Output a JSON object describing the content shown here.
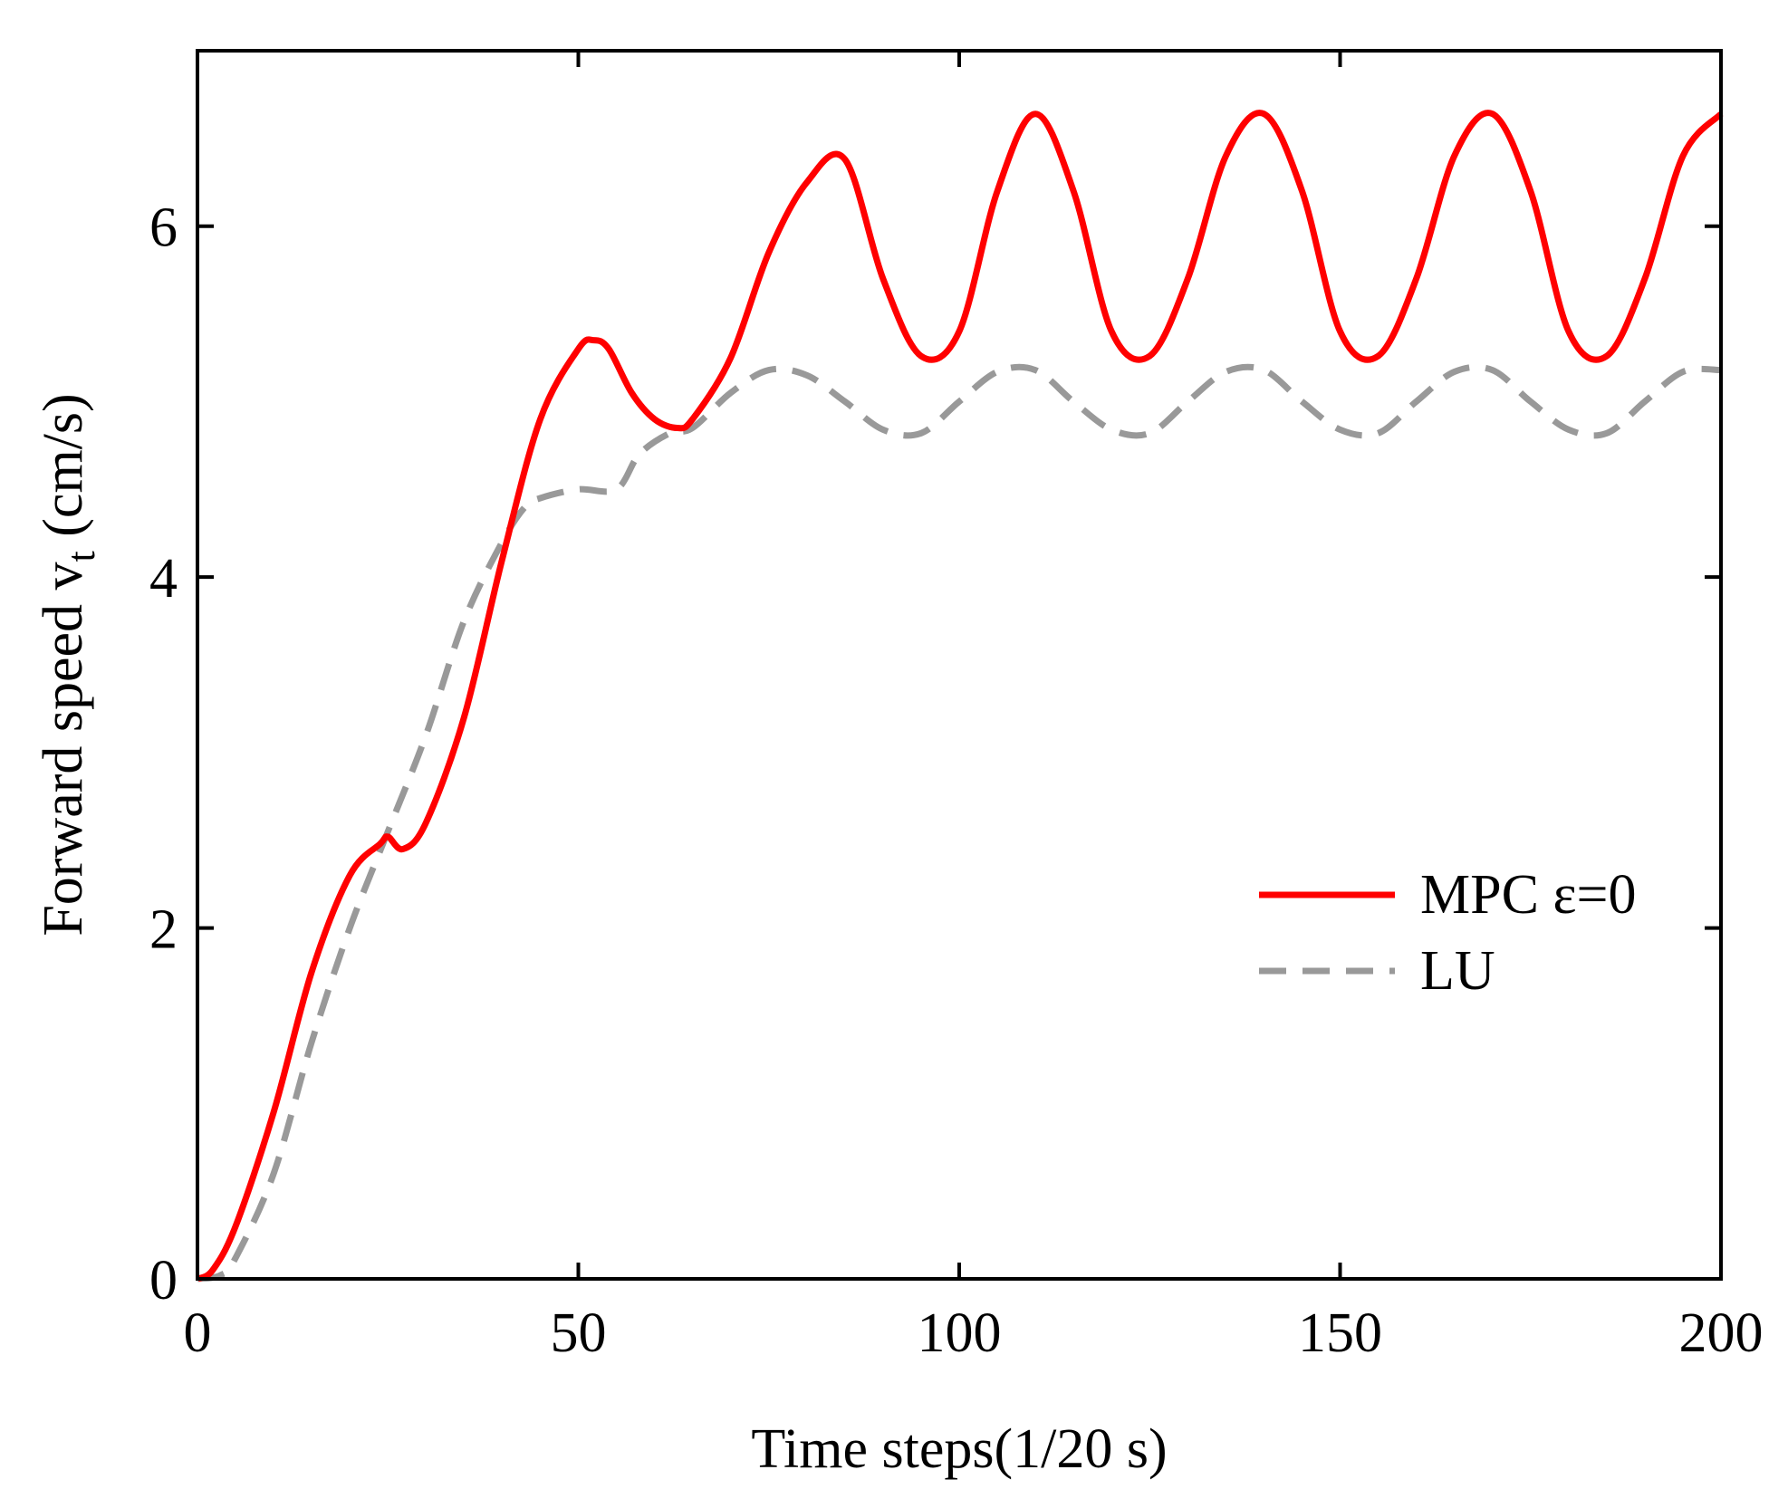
{
  "chart_data": {
    "type": "line",
    "title": "",
    "xlabel": "Time steps(1/20 s)",
    "ylabel_main": "Forward speed v",
    "ylabel_sub": "t",
    "ylabel_unit": " (cm/s)",
    "xlim": [
      0,
      200
    ],
    "ylim": [
      0,
      7
    ],
    "xticks": [
      "0",
      "50",
      "100",
      "150",
      "200"
    ],
    "yticks": [
      "0",
      "2",
      "4",
      "6"
    ],
    "legend_position": "center-right",
    "series": [
      {
        "name": "MPC ε=0",
        "style": "solid",
        "color": "#ff0000",
        "x": [
          0,
          2,
          5,
          10,
          15,
          20,
          24,
          25,
          27,
          30,
          35,
          40,
          45,
          50,
          52,
          54,
          57,
          60,
          63,
          65,
          70,
          75,
          80,
          85,
          90,
          95,
          100,
          105,
          110,
          115,
          120,
          125,
          130,
          135,
          140,
          145,
          150,
          155,
          160,
          165,
          170,
          175,
          180,
          185,
          190,
          195,
          200
        ],
        "y": [
          0,
          0.05,
          0.3,
          0.95,
          1.75,
          2.3,
          2.48,
          2.52,
          2.45,
          2.6,
          3.2,
          4.1,
          4.9,
          5.3,
          5.35,
          5.3,
          5.05,
          4.9,
          4.85,
          4.9,
          5.25,
          5.85,
          6.25,
          6.38,
          5.7,
          5.26,
          5.4,
          6.2,
          6.64,
          6.2,
          5.4,
          5.26,
          5.7,
          6.4,
          6.64,
          6.2,
          5.4,
          5.26,
          5.7,
          6.4,
          6.64,
          6.2,
          5.4,
          5.26,
          5.7,
          6.4,
          6.64
        ]
      },
      {
        "name": "LU",
        "style": "dashed",
        "color": "#999999",
        "x": [
          0,
          3,
          5,
          10,
          15,
          20,
          25,
          30,
          35,
          40,
          43,
          45,
          50,
          55,
          58,
          62,
          65,
          70,
          75,
          80,
          85,
          90,
          95,
          100,
          105,
          110,
          115,
          120,
          125,
          130,
          135,
          140,
          145,
          150,
          155,
          160,
          165,
          170,
          175,
          180,
          185,
          190,
          195,
          200
        ],
        "y": [
          0,
          0.02,
          0.12,
          0.6,
          1.35,
          2.0,
          2.55,
          3.1,
          3.75,
          4.2,
          4.4,
          4.45,
          4.5,
          4.5,
          4.7,
          4.82,
          4.85,
          5.05,
          5.18,
          5.15,
          5.0,
          4.84,
          4.82,
          5.0,
          5.17,
          5.18,
          5.0,
          4.84,
          4.82,
          5.0,
          5.17,
          5.18,
          5.0,
          4.84,
          4.82,
          5.0,
          5.17,
          5.18,
          5.0,
          4.84,
          4.82,
          5.0,
          5.17,
          5.18
        ]
      }
    ]
  }
}
